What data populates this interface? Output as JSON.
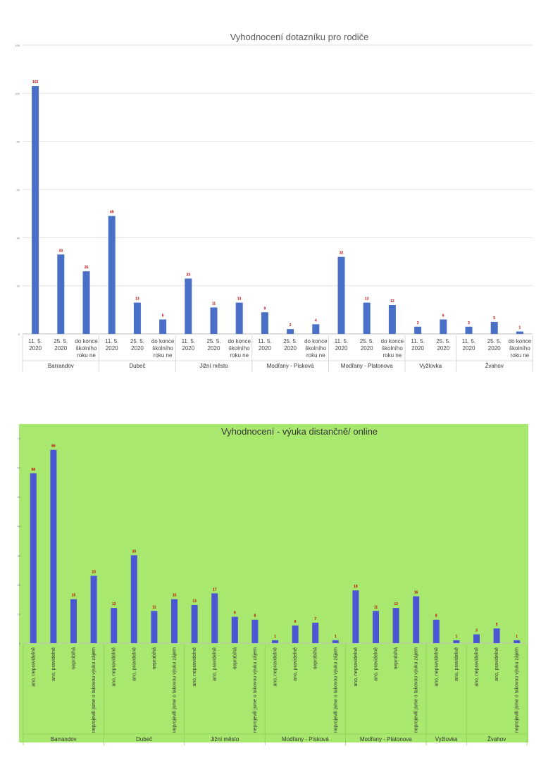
{
  "chart_data": [
    {
      "type": "bar",
      "title": "Vyhodnocení dotazníku pro rodiče",
      "ylim": [
        0,
        120
      ],
      "yticks": [
        0,
        20,
        40,
        60,
        80,
        100,
        120
      ],
      "grid": true,
      "bar_color": "#4a6fc7",
      "label_color": "#c00000",
      "groups": [
        {
          "name": "Barrandov",
          "categories": [
            "11. 5. 2020",
            "25. 5. 2020",
            "do konce školního roku ne"
          ],
          "values": [
            103,
            33,
            26
          ]
        },
        {
          "name": "Dubeč",
          "categories": [
            "11. 5. 2020",
            "25. 5. 2020",
            "do konce školního roku ne"
          ],
          "values": [
            49,
            13,
            6
          ]
        },
        {
          "name": "Jižní město",
          "categories": [
            "11. 5. 2020",
            "25. 5. 2020",
            "do konce školního roku ne"
          ],
          "values": [
            23,
            11,
            13
          ]
        },
        {
          "name": "Modřany - Písková",
          "categories": [
            "11. 5. 2020",
            "25. 5. 2020",
            "do konce školního roku ne"
          ],
          "values": [
            9,
            2,
            4
          ]
        },
        {
          "name": "Modřany - Platonova",
          "categories": [
            "11. 5. 2020",
            "25. 5. 2020",
            "do konce školního roku ne"
          ],
          "values": [
            32,
            13,
            12
          ]
        },
        {
          "name": "Vyžlovka",
          "categories": [
            "11. 5. 2020",
            "25. 5. 2020"
          ],
          "values": [
            3,
            6
          ]
        },
        {
          "name": "Žvahov",
          "categories": [
            "11. 5. 2020",
            "25. 5. 2020",
            "do konce školního roku ne"
          ],
          "values": [
            3,
            5,
            1
          ]
        }
      ]
    },
    {
      "type": "bar",
      "title": "Vyhodnocení  - výuka distančně/ online",
      "ylim": [
        0,
        70
      ],
      "yticks": [
        0,
        10,
        20,
        30,
        40,
        50,
        60,
        70
      ],
      "grid": false,
      "background": "#a8e86e",
      "bar_color": "#4a56d4",
      "label_color": "#c00000",
      "groups": [
        {
          "name": "Barrandov",
          "categories": [
            "ano, nepravidelně",
            "ano, pravidelně",
            "neprobíhá",
            "neprojevili jsme o takovou výuku zájem"
          ],
          "values": [
            58,
            66,
            15,
            23
          ]
        },
        {
          "name": "Dubeč",
          "categories": [
            "ano, nepravidelně",
            "ano, pravidelně",
            "neprobíhá",
            "neprojevili jsme o takovou výuku zájem"
          ],
          "values": [
            12,
            30,
            11,
            15
          ]
        },
        {
          "name": "Jižní město",
          "categories": [
            "ano, nepravidelně",
            "ano, pravidelně",
            "neprobíhá",
            "neprojevili jsme o takovou výuku zájem"
          ],
          "values": [
            13,
            17,
            9,
            8
          ]
        },
        {
          "name": "Modřany - Písková",
          "categories": [
            "ano, nepravidelně",
            "ano, pravidelně",
            "neprobíhá",
            "neprojevili jsme o takovou výuku zájem"
          ],
          "values": [
            1,
            6,
            7,
            1
          ]
        },
        {
          "name": "Modřany - Platonova",
          "categories": [
            "ano, nepravidelně",
            "ano, pravidelně",
            "neprobíhá",
            "neprojevili jsme o takovou výuku zájem"
          ],
          "values": [
            18,
            11,
            12,
            16
          ]
        },
        {
          "name": "Vyžlovka",
          "categories": [
            "ano, nepravidelně",
            "ano, pravidelně"
          ],
          "values": [
            8,
            1
          ]
        },
        {
          "name": "Žvahov",
          "categories": [
            "ano, nepravidelně",
            "ano, pravidelně",
            "neprojevili jsme o takovou výuku zájem"
          ],
          "values": [
            3,
            5,
            1
          ]
        }
      ]
    }
  ]
}
